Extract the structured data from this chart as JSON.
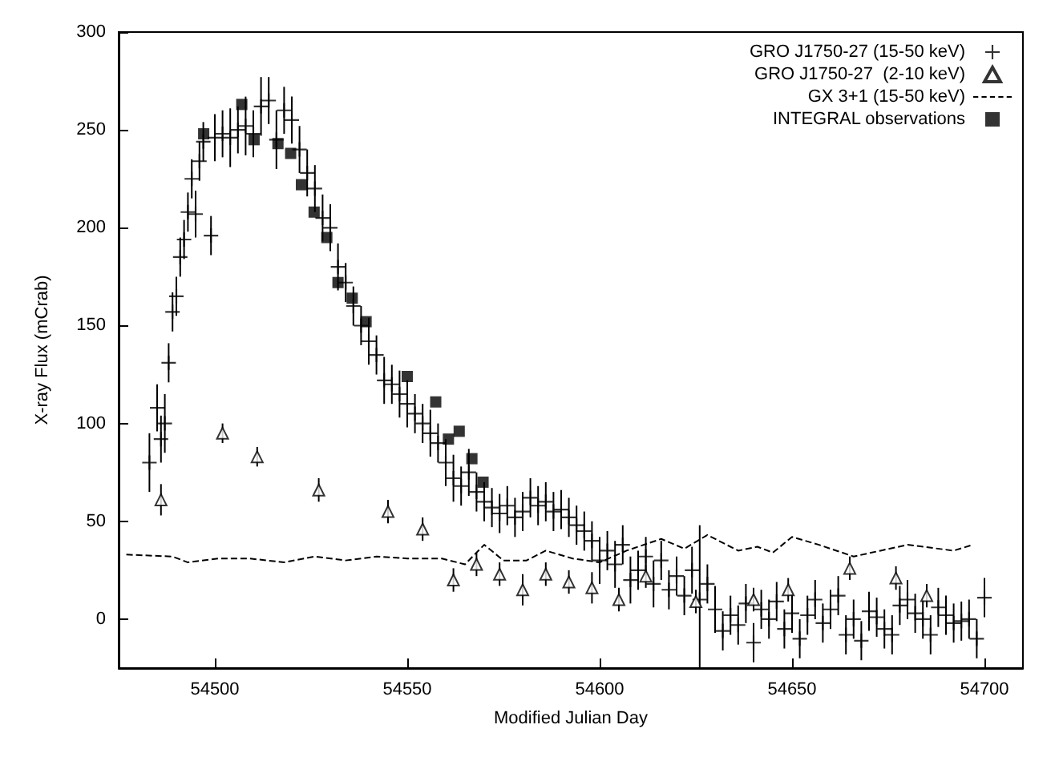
{
  "chart_data": {
    "type": "scatter",
    "xlabel": "Modified Julian Day",
    "ylabel": "X-ray Flux (mCrab)",
    "xlim": [
      54475,
      54710
    ],
    "xticks": [
      54500,
      54550,
      54600,
      54650,
      54700
    ],
    "ylim": [
      -25,
      300
    ],
    "yticks": [
      0,
      50,
      100,
      150,
      200,
      250,
      300
    ],
    "grid": false,
    "legend": "top right",
    "series": [
      {
        "name": "GRO J1750-27 (15-50 keV)",
        "marker": "cross",
        "color": "#000000",
        "x": [
          54483,
          54485,
          54486,
          54487,
          54488,
          54489,
          54490,
          54491,
          54492,
          54493,
          54494,
          54495,
          54496,
          54497,
          54499,
          54500,
          54502,
          54504,
          54506,
          54508,
          54510,
          54512,
          54514,
          54516,
          54518,
          54520,
          54522,
          54524,
          54526,
          54528,
          54530,
          54532,
          54534,
          54536,
          54538,
          54540,
          54542,
          54544,
          54546,
          54548,
          54550,
          54552,
          54554,
          54556,
          54558,
          54560,
          54562,
          54564,
          54566,
          54568,
          54570,
          54572,
          54574,
          54576,
          54578,
          54580,
          54582,
          54584,
          54586,
          54588,
          54590,
          54592,
          54594,
          54596,
          54598,
          54600,
          54602,
          54604,
          54606,
          54608,
          54610,
          54612,
          54614,
          54616,
          54618,
          54620,
          54622,
          54624,
          54626,
          54628,
          54630,
          54632,
          54634,
          54636,
          54638,
          54640,
          54642,
          54644,
          54646,
          54648,
          54650,
          54652,
          54654,
          54656,
          54658,
          54660,
          54662,
          54664,
          54666,
          54668,
          54670,
          54672,
          54674,
          54676,
          54678,
          54680,
          54682,
          54684,
          54686,
          54688,
          54690,
          54692,
          54694,
          54696,
          54698,
          54700
        ],
        "values": [
          80,
          108,
          92,
          100,
          131,
          157,
          165,
          185,
          194,
          208,
          225,
          207,
          234,
          244,
          196,
          246,
          248,
          246,
          250,
          252,
          248,
          262,
          265,
          245,
          260,
          255,
          240,
          228,
          220,
          205,
          200,
          180,
          172,
          160,
          150,
          142,
          135,
          122,
          120,
          115,
          110,
          105,
          100,
          95,
          90,
          80,
          72,
          68,
          75,
          65,
          60,
          57,
          54,
          58,
          52,
          55,
          62,
          58,
          60,
          55,
          56,
          52,
          48,
          45,
          40,
          30,
          35,
          28,
          38,
          20,
          25,
          32,
          18,
          30,
          15,
          22,
          12,
          25,
          10,
          18,
          5,
          -6,
          2,
          -3,
          8,
          -12,
          5,
          0,
          9,
          -5,
          3,
          -10,
          2,
          10,
          -2,
          5,
          12,
          -8,
          0,
          -11,
          4,
          1,
          -5,
          -8,
          7,
          10,
          3,
          0,
          -8,
          6,
          2,
          -2,
          -1,
          0,
          -10,
          11
        ],
        "errors": [
          15,
          12,
          12,
          15,
          10,
          10,
          10,
          10,
          10,
          10,
          10,
          12,
          10,
          10,
          10,
          12,
          12,
          15,
          12,
          15,
          12,
          15,
          12,
          15,
          12,
          12,
          12,
          12,
          12,
          12,
          12,
          12,
          10,
          10,
          10,
          12,
          10,
          12,
          10,
          12,
          12,
          10,
          10,
          12,
          10,
          12,
          12,
          10,
          12,
          10,
          10,
          10,
          10,
          10,
          10,
          10,
          10,
          10,
          10,
          10,
          10,
          10,
          10,
          10,
          10,
          12,
          10,
          12,
          10,
          12,
          10,
          10,
          12,
          10,
          10,
          10,
          10,
          12,
          38,
          10,
          12,
          10,
          10,
          10,
          10,
          10,
          10,
          10,
          10,
          10,
          10,
          10,
          10,
          10,
          10,
          10,
          10,
          10,
          10,
          10,
          10,
          10,
          10,
          10,
          10,
          10,
          10,
          10,
          10,
          10,
          10,
          10,
          10,
          10,
          10,
          10
        ]
      },
      {
        "name": "GRO J1750-27  (2-10 keV)",
        "marker": "triangle",
        "color": "#000000",
        "x": [
          54486,
          54502,
          54511,
          54527,
          54545,
          54554,
          54562,
          54568,
          54574,
          54580,
          54586,
          54592,
          54598,
          54605,
          54612,
          54625,
          54640,
          54649,
          54665,
          54677,
          54685
        ],
        "values": [
          61,
          95,
          83,
          66,
          55,
          46,
          20,
          28,
          23,
          15,
          23,
          19,
          16,
          10,
          22,
          9,
          10,
          15,
          26,
          21,
          12
        ],
        "errors": [
          8,
          5,
          5,
          6,
          6,
          6,
          6,
          6,
          6,
          8,
          6,
          6,
          8,
          6,
          6,
          6,
          6,
          6,
          6,
          6,
          6
        ]
      },
      {
        "name": "GX 3+1 (15-50 keV)",
        "type": "line",
        "line_style": "dashed",
        "marker": "none",
        "color": "#000000",
        "x": [
          54477,
          54489,
          54493,
          54501,
          54509,
          54518,
          54526,
          54534,
          54542,
          54550,
          54559,
          54565,
          54570,
          54575,
          54581,
          54586,
          54593,
          54600,
          54607,
          54616,
          54622,
          54628,
          54636,
          54641,
          54645,
          54650,
          54657,
          54666,
          54673,
          54680,
          54692,
          54697
        ],
        "values": [
          33,
          32,
          29,
          31,
          31,
          29,
          32,
          30,
          32,
          31,
          31,
          28,
          38,
          30,
          30,
          35,
          31,
          29,
          35,
          41,
          36,
          43,
          35,
          37,
          34,
          42,
          38,
          32,
          35,
          38,
          35,
          38
        ]
      },
      {
        "name": "INTEGRAL observations",
        "marker": "square",
        "color": "#000000",
        "x": [
          54497.1,
          54507,
          54510.2,
          54516.4,
          54519.7,
          54522.5,
          54525.8,
          54529.1,
          54532,
          54535.7,
          54539.3,
          54550,
          54557.4,
          54560.7,
          54563.5,
          54566.8,
          54569.7
        ],
        "values": [
          248,
          263,
          245,
          243,
          238,
          222,
          208,
          195,
          172,
          164,
          152,
          124,
          111,
          92,
          96,
          82,
          70
        ]
      }
    ]
  }
}
